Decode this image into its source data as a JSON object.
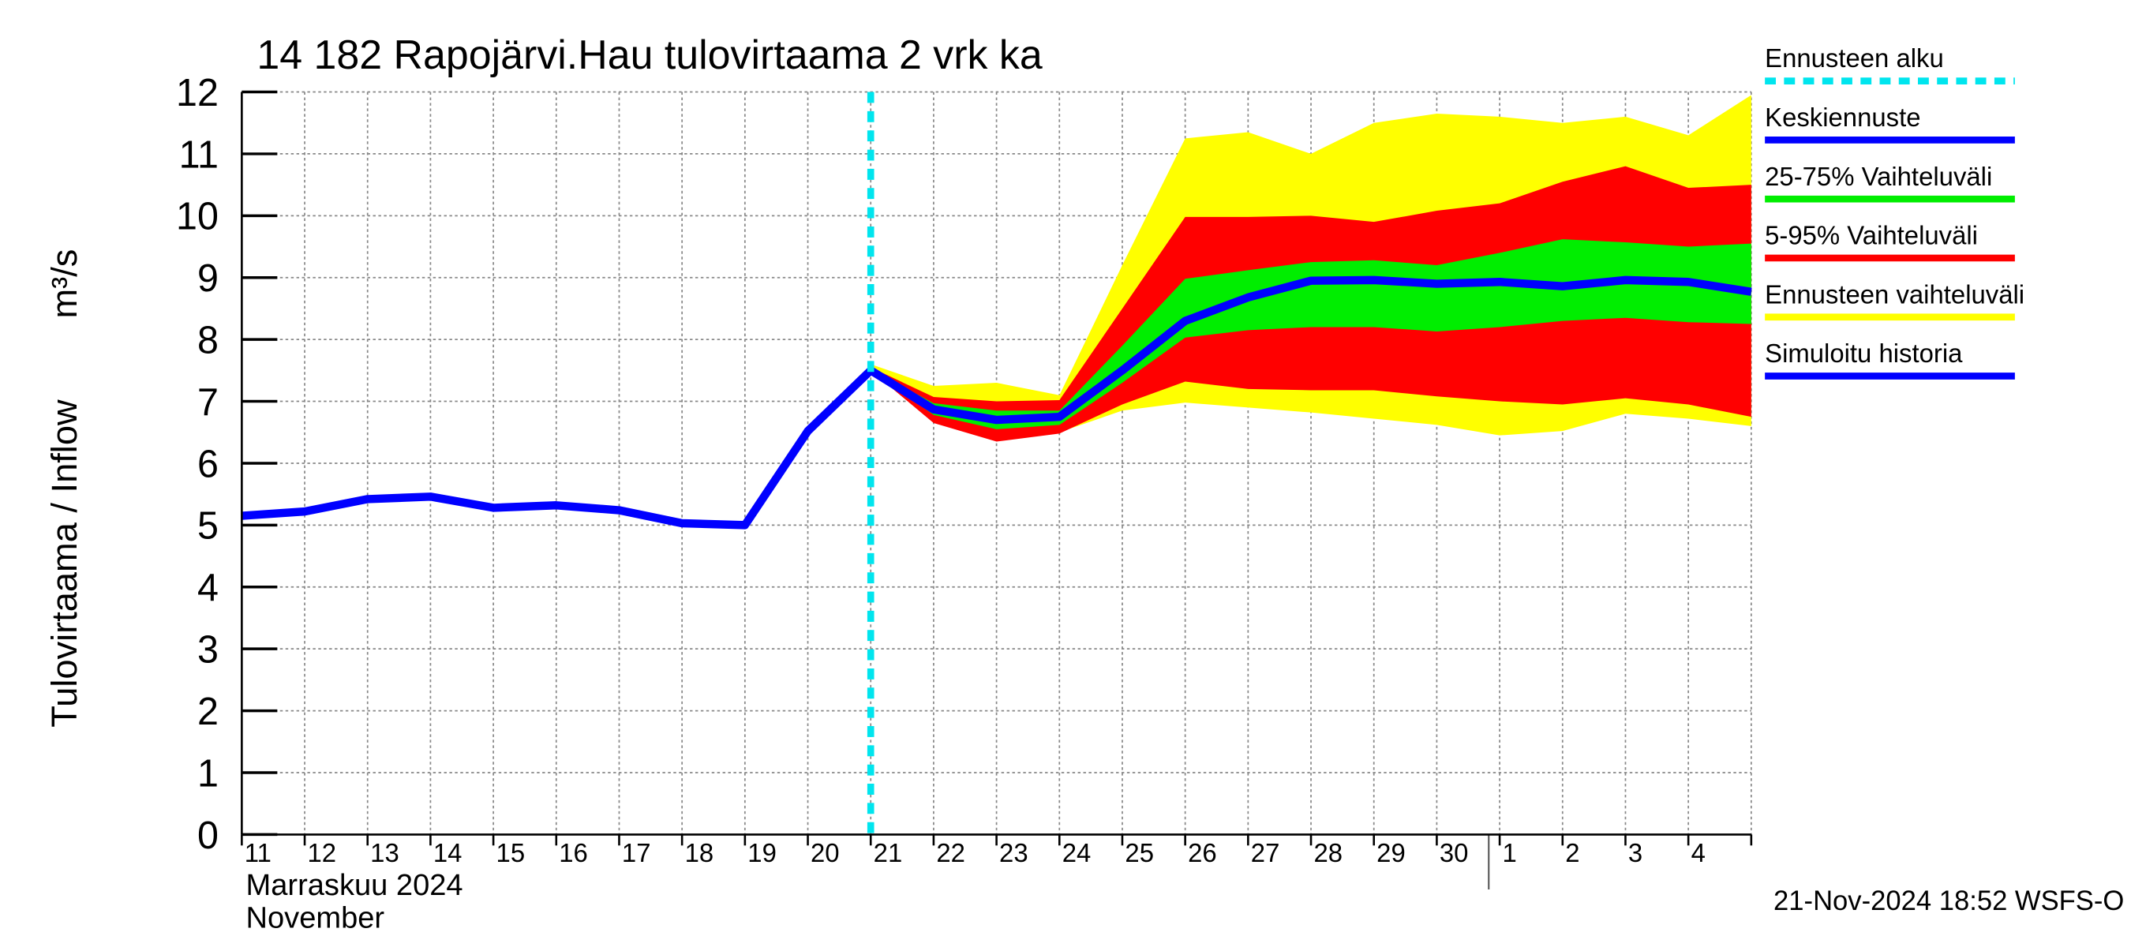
{
  "chart_data": {
    "type": "line",
    "title": "14 182 Rapojärvi.Hau tulovirtaama 2 vrk ka",
    "y_label": "Tulovirtaama / Inflow",
    "y_unit": "m³/s",
    "x_label_fi": "Marraskuu 2024",
    "x_label_en": "November",
    "footer": "21-Nov-2024 18:52 WSFS-O",
    "categories": [
      "11",
      "12",
      "13",
      "14",
      "15",
      "16",
      "17",
      "18",
      "19",
      "20",
      "21",
      "22",
      "23",
      "24",
      "25",
      "26",
      "27",
      "28",
      "29",
      "30",
      "1",
      "2",
      "3",
      "4",
      null
    ],
    "month_start": "1",
    "ylim": [
      0,
      12
    ],
    "yticks": [
      0,
      1,
      2,
      3,
      4,
      5,
      6,
      7,
      8,
      9,
      10,
      11,
      12
    ],
    "grid": true,
    "forecast_start": {
      "name": "Ennusteen alku",
      "x": "21",
      "color": "#00e5ee"
    },
    "series": [
      {
        "name": "Keskiennuste",
        "color": "#0000ff",
        "values": [
          null,
          null,
          null,
          null,
          null,
          null,
          null,
          null,
          null,
          null,
          7.5,
          6.87,
          6.7,
          6.75,
          7.5,
          8.3,
          8.68,
          8.95,
          8.96,
          8.9,
          8.93,
          8.86,
          8.96,
          8.93,
          8.77
        ]
      },
      {
        "name": "25-75% Vaihteluväli",
        "color": "#00ee00",
        "values": [
          null,
          null,
          null,
          null,
          null,
          null,
          null,
          null,
          null,
          null,
          7.52,
          6.97,
          6.85,
          6.85,
          7.9,
          8.98,
          9.12,
          9.25,
          9.28,
          9.2,
          9.4,
          9.62,
          9.57,
          9.5,
          9.55
        ],
        "lower": [
          null,
          null,
          null,
          null,
          null,
          null,
          null,
          null,
          null,
          null,
          7.5,
          6.78,
          6.55,
          6.62,
          7.3,
          8.03,
          8.15,
          8.2,
          8.2,
          8.13,
          8.2,
          8.3,
          8.35,
          8.28,
          8.25
        ]
      },
      {
        "name": "5-95% Vaihteluväli",
        "color": "#ff0000",
        "values": [
          null,
          null,
          null,
          null,
          null,
          null,
          null,
          null,
          null,
          null,
          7.55,
          7.07,
          7.0,
          7.02,
          8.5,
          9.98,
          9.98,
          10.0,
          9.9,
          10.08,
          10.2,
          10.55,
          10.8,
          10.45,
          10.5
        ],
        "lower": [
          null,
          null,
          null,
          null,
          null,
          null,
          null,
          null,
          null,
          null,
          7.5,
          6.65,
          6.35,
          6.48,
          6.95,
          7.32,
          7.2,
          7.18,
          7.18,
          7.08,
          7.0,
          6.95,
          7.05,
          6.95,
          6.75
        ]
      },
      {
        "name": "Ennusteen vaihteluväli",
        "color": "#ffff00",
        "values": [
          null,
          null,
          null,
          null,
          null,
          null,
          null,
          null,
          null,
          null,
          7.6,
          7.25,
          7.3,
          7.1,
          9.2,
          11.25,
          11.35,
          11.0,
          11.5,
          11.65,
          11.6,
          11.5,
          11.6,
          11.3,
          11.95
        ],
        "lower": [
          null,
          null,
          null,
          null,
          null,
          null,
          null,
          null,
          null,
          null,
          7.5,
          6.7,
          6.4,
          6.5,
          6.85,
          6.98,
          6.9,
          6.82,
          6.72,
          6.62,
          6.45,
          6.52,
          6.8,
          6.72,
          6.6
        ]
      },
      {
        "name": "Simuloitu historia",
        "color": "#0000ff",
        "values": [
          5.15,
          5.22,
          5.42,
          5.46,
          5.28,
          5.32,
          5.24,
          5.03,
          5.0,
          6.52,
          7.5,
          null,
          null,
          null,
          null,
          null,
          null,
          null,
          null,
          null,
          null,
          null,
          null,
          null,
          null
        ]
      }
    ]
  }
}
